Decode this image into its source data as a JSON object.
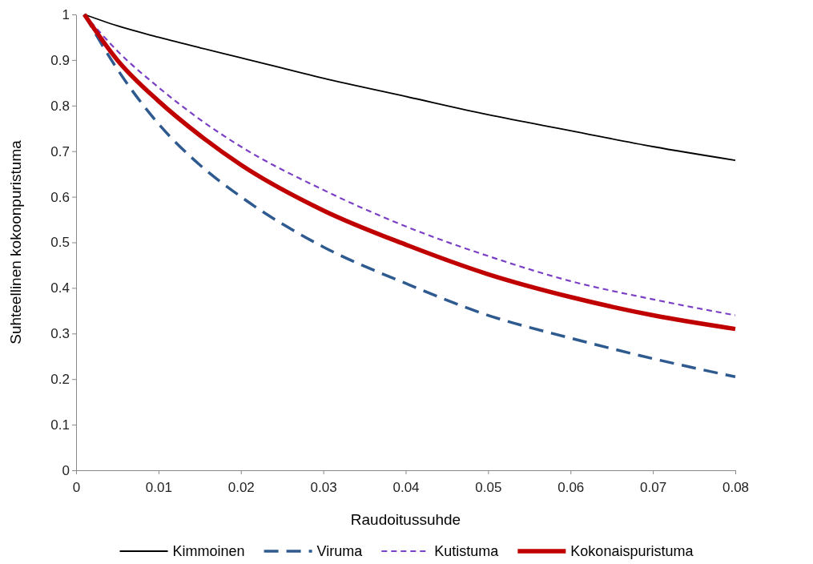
{
  "chart_data": {
    "type": "line",
    "xlabel": "Raudoitussuhde",
    "ylabel": "Suhteellinen kokoonpuristuma",
    "xlim": [
      0,
      0.08
    ],
    "xticks": [
      {
        "value": 0,
        "label": "0"
      },
      0.01,
      0.02,
      0.03,
      0.04,
      0.05,
      0.06,
      0.07,
      0.08
    ],
    "ylim": [
      0,
      1
    ],
    "yticks": [
      0,
      0.1,
      0.2,
      0.3,
      0.4,
      0.5,
      0.6,
      0.7,
      0.8,
      0.9,
      1
    ],
    "grid": false,
    "legend": "bottom",
    "marker": "none",
    "x": [
      0.001,
      0.005,
      0.01,
      0.015,
      0.02,
      0.03,
      0.04,
      0.05,
      0.06,
      0.07,
      0.08
    ],
    "series": [
      {
        "name": "Kimmoinen",
        "color": "#000000",
        "line_style": "solid",
        "values": [
          1,
          0.975,
          0.95,
          0.927,
          0.905,
          0.86,
          0.82,
          0.78,
          0.745,
          0.71,
          0.68
        ]
      },
      {
        "name": "Viruma",
        "color": "#2e5a8f",
        "line_style": "dashed",
        "values": [
          1,
          0.88,
          0.76,
          0.67,
          0.6,
          0.49,
          0.41,
          0.34,
          0.29,
          0.245,
          0.205
        ]
      },
      {
        "name": "Kutistuma",
        "color": "#7a3fc4",
        "line_style": "dotted",
        "values": [
          1,
          0.92,
          0.84,
          0.77,
          0.71,
          0.615,
          0.535,
          0.47,
          0.415,
          0.375,
          0.34
        ]
      },
      {
        "name": "Kokonaispuristuma",
        "color": "#c00000",
        "line_style": "solid",
        "values": [
          1,
          0.9,
          0.81,
          0.735,
          0.67,
          0.57,
          0.495,
          0.43,
          0.38,
          0.34,
          0.31
        ]
      }
    ]
  }
}
